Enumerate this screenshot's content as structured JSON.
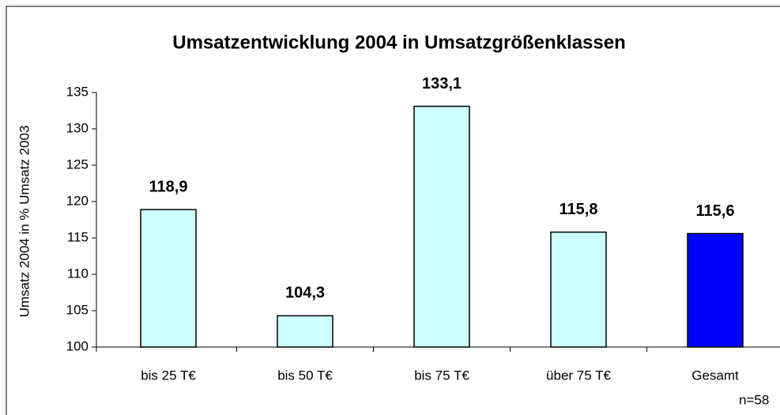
{
  "chart_data": {
    "type": "bar",
    "title": "Umsatzentwicklung 2004 in Umsatzgrößenklassen",
    "y_label": "Umsatz 2004 in % Umsatz 2003",
    "annotation": "n=58",
    "categories": [
      "bis 25 T€",
      "bis 50 T€",
      "bis 75 T€",
      "über 75 T€",
      "Gesamt"
    ],
    "values": [
      118.9,
      104.3,
      133.1,
      115.8,
      115.6
    ],
    "value_labels": [
      "118,9",
      "104,3",
      "133,1",
      "115,8",
      "115,6"
    ],
    "colors": [
      "#ccffff",
      "#ccffff",
      "#ccffff",
      "#ccffff",
      "#0000ff"
    ],
    "ylim": [
      100,
      135
    ],
    "yticks": [
      100,
      105,
      110,
      115,
      120,
      125,
      130,
      135
    ],
    "grid": false
  }
}
